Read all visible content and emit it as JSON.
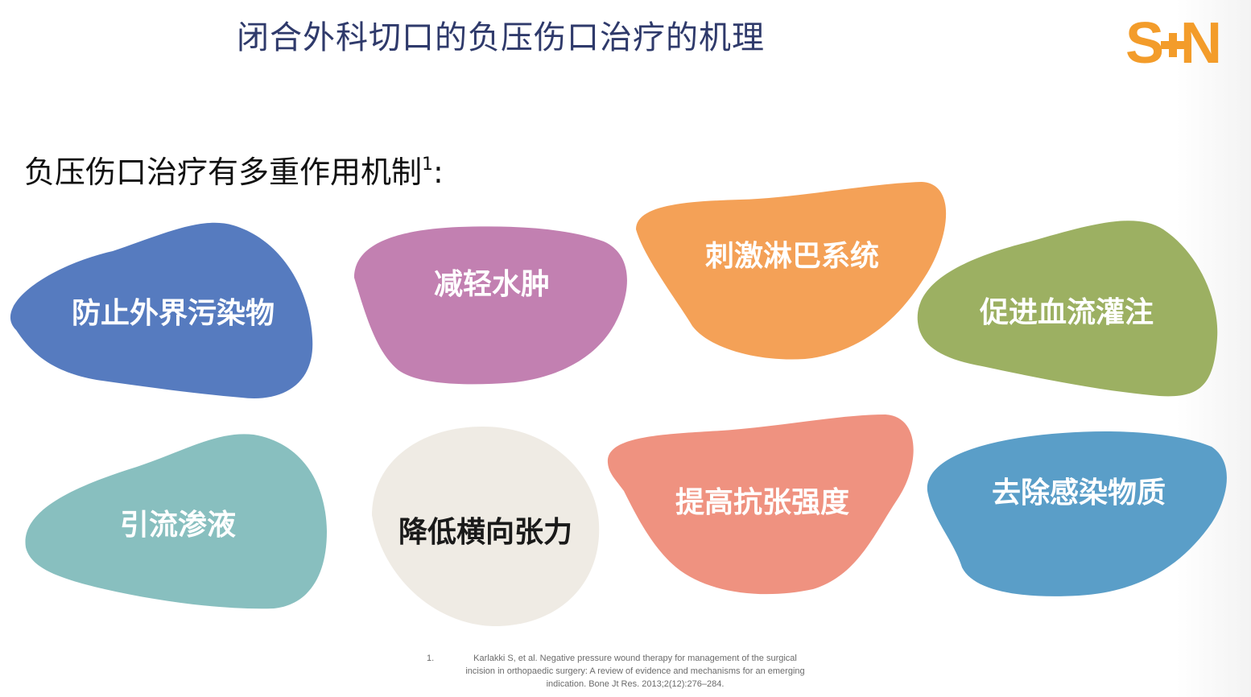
{
  "title": "闭合外科切口的负压伤口治疗的机理",
  "logo": {
    "left": "S",
    "right": "N",
    "color": "#f39c2a"
  },
  "subtitle": {
    "text": "负压伤口治疗有多重作用机制",
    "sup": "1",
    "suffix": ":"
  },
  "mechanisms": [
    {
      "label": "防止外界污染物",
      "color": "#567bbf"
    },
    {
      "label": "减轻水肿",
      "color": "#c280b1"
    },
    {
      "label": "刺激淋巴系统",
      "color": "#f4a157"
    },
    {
      "label": "促进血流灌注",
      "color": "#9cb062"
    },
    {
      "label": "引流渗液",
      "color": "#88bfbf"
    },
    {
      "label": "降低横向张力",
      "color": "#efebe4"
    },
    {
      "label": "提高抗张强度",
      "color": "#ef9280"
    },
    {
      "label": "去除感染物质",
      "color": "#5a9ec8"
    }
  ],
  "citation": {
    "number": "1.",
    "line1": "Karlakki S, et al. Negative pressure wound therapy for management of the surgical",
    "line2": "incision in orthopaedic surgery: A review of evidence and mechanisms for an emerging",
    "line3": "indication. Bone Jt Res. 2013;2(12):276–284."
  }
}
